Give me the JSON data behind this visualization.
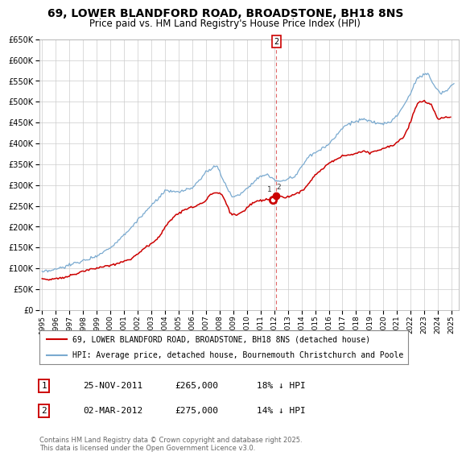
{
  "title": "69, LOWER BLANDFORD ROAD, BROADSTONE, BH18 8NS",
  "subtitle": "Price paid vs. HM Land Registry's House Price Index (HPI)",
  "hpi_label": "HPI: Average price, detached house, Bournemouth Christchurch and Poole",
  "property_label": "69, LOWER BLANDFORD ROAD, BROADSTONE, BH18 8NS (detached house)",
  "hpi_color": "#7aaad0",
  "property_color": "#cc0000",
  "annotation_line_color": "#cc0000",
  "ylim": [
    0,
    650000
  ],
  "yticks": [
    0,
    50000,
    100000,
    150000,
    200000,
    250000,
    300000,
    350000,
    400000,
    450000,
    500000,
    550000,
    600000,
    650000
  ],
  "xlim_start": 1994.8,
  "xlim_end": 2025.5,
  "t1_x": 2011.896,
  "t1_y": 265000,
  "t2_x": 2012.164,
  "t2_y": 275000,
  "annotation1": {
    "label": "1",
    "date": "25-NOV-2011",
    "price": "£265,000",
    "hpi_diff": "18% ↓ HPI"
  },
  "annotation2": {
    "label": "2",
    "date": "02-MAR-2012",
    "price": "£275,000",
    "hpi_diff": "14% ↓ HPI"
  },
  "footer": "Contains HM Land Registry data © Crown copyright and database right 2025.\nThis data is licensed under the Open Government Licence v3.0.",
  "background_color": "#ffffff",
  "grid_color": "#cccccc",
  "hpi_anchors_x": [
    1995.0,
    1996.0,
    1997.0,
    1998.0,
    1999.0,
    2000.0,
    2001.0,
    2002.0,
    2003.0,
    2004.0,
    2005.0,
    2006.0,
    2007.0,
    2007.8,
    2008.5,
    2009.0,
    2009.5,
    2010.0,
    2010.5,
    2011.0,
    2011.5,
    2012.0,
    2012.5,
    2013.0,
    2013.5,
    2014.0,
    2014.5,
    2015.0,
    2015.5,
    2016.0,
    2016.5,
    2017.0,
    2017.5,
    2018.0,
    2018.5,
    2019.0,
    2019.5,
    2020.0,
    2020.5,
    2021.0,
    2021.5,
    2022.0,
    2022.5,
    2023.0,
    2023.3,
    2023.8,
    2024.2,
    2024.7,
    2025.1
  ],
  "hpi_anchors_y": [
    90000,
    97000,
    108000,
    118000,
    130000,
    150000,
    180000,
    215000,
    250000,
    285000,
    283000,
    293000,
    330000,
    348000,
    295000,
    270000,
    278000,
    293000,
    308000,
    322000,
    323000,
    313000,
    308000,
    315000,
    320000,
    345000,
    368000,
    378000,
    388000,
    398000,
    418000,
    438000,
    448000,
    453000,
    458000,
    453000,
    448000,
    447000,
    452000,
    467000,
    492000,
    522000,
    557000,
    568000,
    565000,
    535000,
    520000,
    530000,
    542000
  ],
  "prop_anchors_x": [
    1995.0,
    1995.5,
    1996.5,
    1997.5,
    1998.5,
    1999.5,
    2000.5,
    2001.5,
    2002.5,
    2003.5,
    2004.0,
    2004.8,
    2005.5,
    2006.0,
    2006.8,
    2007.5,
    2008.2,
    2008.8,
    2009.2,
    2009.8,
    2010.3,
    2010.8,
    2011.3,
    2011.896,
    2012.164,
    2012.8,
    2013.5,
    2014.2,
    2015.0,
    2016.0,
    2017.0,
    2018.0,
    2018.5,
    2019.0,
    2019.5,
    2020.0,
    2020.8,
    2021.5,
    2022.0,
    2022.5,
    2023.0,
    2023.5,
    2024.0,
    2024.5
  ],
  "prop_anchors_y": [
    75000,
    73000,
    78000,
    87000,
    98000,
    103000,
    112000,
    122000,
    148000,
    172000,
    200000,
    228000,
    242000,
    246000,
    258000,
    282000,
    278000,
    232000,
    228000,
    238000,
    255000,
    262000,
    265000,
    265000,
    275000,
    270000,
    278000,
    290000,
    325000,
    352000,
    370000,
    375000,
    382000,
    377000,
    383000,
    388000,
    398000,
    415000,
    453000,
    498000,
    502000,
    492000,
    458000,
    463000
  ]
}
